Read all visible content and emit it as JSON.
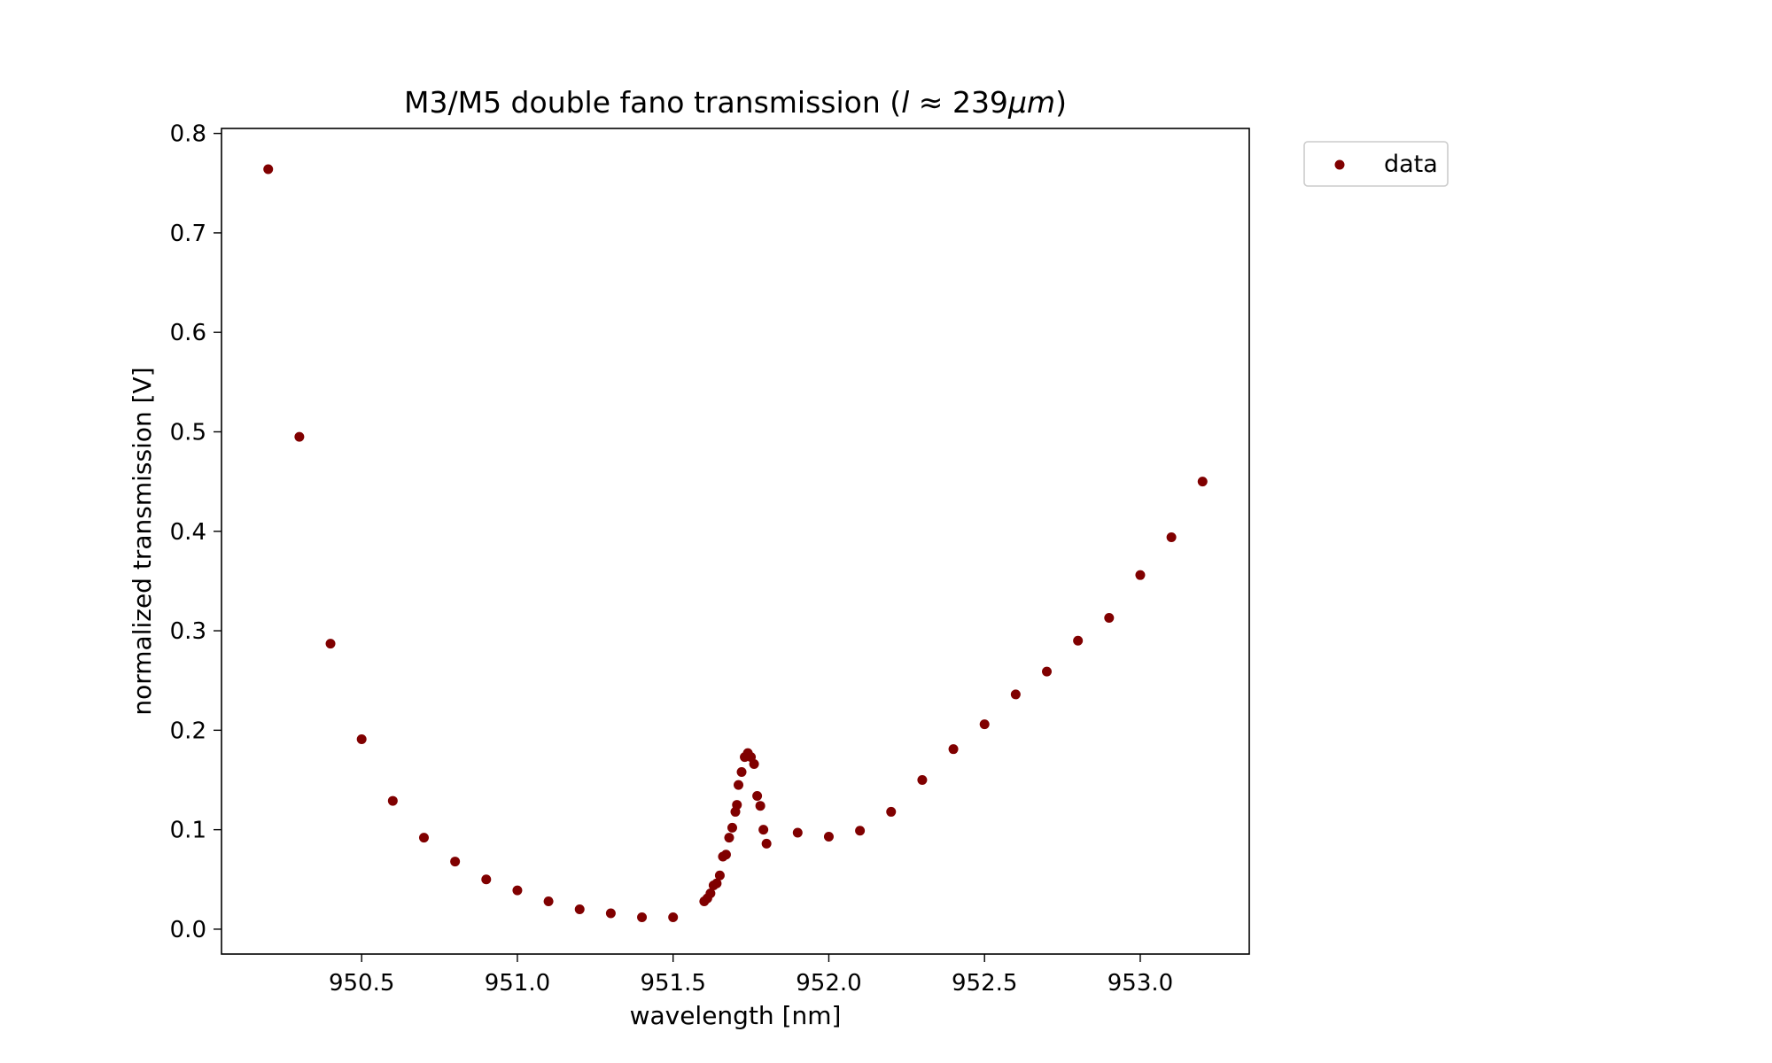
{
  "chart_data": {
    "type": "scatter",
    "title": "M3/M5 double fano transmission (l ≈ 239μm)",
    "title_parts": {
      "prefix": "M3/M5 double fano transmission (",
      "var": "l",
      "approx": " ≈ 239",
      "unit": "μm",
      "suffix": ")"
    },
    "xlabel": "wavelength [nm]",
    "ylabel": "normalized transmission [V]",
    "xlim": [
      950.05,
      953.35
    ],
    "ylim": [
      -0.025,
      0.805
    ],
    "xticks": [
      950.5,
      951.0,
      951.5,
      952.0,
      952.5,
      953.0
    ],
    "xtick_labels": [
      "950.5",
      "951.0",
      "951.5",
      "952.0",
      "952.5",
      "953.0"
    ],
    "yticks": [
      0.0,
      0.1,
      0.2,
      0.3,
      0.4,
      0.5,
      0.6,
      0.7,
      0.8
    ],
    "ytick_labels": [
      "0.0",
      "0.1",
      "0.2",
      "0.3",
      "0.4",
      "0.5",
      "0.6",
      "0.7",
      "0.8"
    ],
    "grid": false,
    "legend_position": "outside-top-right",
    "series": [
      {
        "name": "data",
        "color": "#800000",
        "points": [
          [
            950.2,
            0.764
          ],
          [
            950.3,
            0.495
          ],
          [
            950.4,
            0.287
          ],
          [
            950.5,
            0.191
          ],
          [
            950.6,
            0.129
          ],
          [
            950.7,
            0.092
          ],
          [
            950.8,
            0.068
          ],
          [
            950.9,
            0.05
          ],
          [
            951.0,
            0.039
          ],
          [
            951.1,
            0.028
          ],
          [
            951.2,
            0.02
          ],
          [
            951.3,
            0.016
          ],
          [
            951.4,
            0.012
          ],
          [
            951.5,
            0.012
          ],
          [
            951.6,
            0.028
          ],
          [
            951.61,
            0.031
          ],
          [
            951.62,
            0.036
          ],
          [
            951.63,
            0.044
          ],
          [
            951.64,
            0.046
          ],
          [
            951.65,
            0.054
          ],
          [
            951.66,
            0.073
          ],
          [
            951.67,
            0.075
          ],
          [
            951.68,
            0.092
          ],
          [
            951.69,
            0.102
          ],
          [
            951.7,
            0.118
          ],
          [
            951.705,
            0.125
          ],
          [
            951.71,
            0.145
          ],
          [
            951.72,
            0.158
          ],
          [
            951.73,
            0.173
          ],
          [
            951.74,
            0.177
          ],
          [
            951.75,
            0.173
          ],
          [
            951.76,
            0.166
          ],
          [
            951.77,
            0.134
          ],
          [
            951.78,
            0.124
          ],
          [
            951.79,
            0.1
          ],
          [
            951.8,
            0.086
          ],
          [
            951.9,
            0.097
          ],
          [
            952.0,
            0.093
          ],
          [
            952.1,
            0.099
          ],
          [
            952.2,
            0.118
          ],
          [
            952.3,
            0.15
          ],
          [
            952.4,
            0.181
          ],
          [
            952.5,
            0.206
          ],
          [
            952.6,
            0.236
          ],
          [
            952.7,
            0.259
          ],
          [
            952.8,
            0.29
          ],
          [
            952.9,
            0.313
          ],
          [
            953.0,
            0.356
          ],
          [
            953.1,
            0.394
          ],
          [
            953.2,
            0.45
          ]
        ]
      }
    ]
  }
}
